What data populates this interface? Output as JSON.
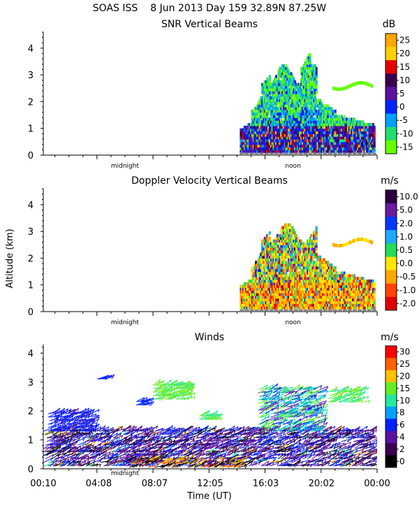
{
  "header": {
    "site": "SOAS ISS",
    "date": "8 Jun 2013 Day 159 32.89N  87.25W"
  },
  "common_axes": {
    "ylabel": "Altitude (km)",
    "xlabel": "Time (UT)",
    "y_ticks": [
      "0",
      "1",
      "2",
      "3",
      "4"
    ],
    "x_tick_labels": [
      "00:10",
      "04:08",
      "08:07",
      "12:05",
      "16:03",
      "20:02",
      "00:00"
    ],
    "inner_labels": {
      "midnight": "midnight",
      "noon": "noon"
    }
  },
  "chart_data": [
    {
      "type": "heatmap",
      "title": "SNR Vertical Beams",
      "units": "dB",
      "ylim": [
        0,
        4.6
      ],
      "x_range_hours": [
        0.17,
        24.0
      ],
      "data_start_hour": 14.2,
      "data_end_hour": 23.8,
      "colorbar_labels": [
        "25",
        "20",
        "15",
        "10",
        "5",
        "0",
        "-5",
        "-10",
        "-15"
      ],
      "colorbar_colors": [
        "#ffa800",
        "#ffd000",
        "#e60000",
        "#3a0050",
        "#5a12a0",
        "#0024ff",
        "#00a0ff",
        "#22dd70",
        "#66ff00"
      ]
    },
    {
      "type": "heatmap",
      "title": "Doppler Velocity Vertical Beams",
      "units": "m/s",
      "ylim": [
        0,
        4.6
      ],
      "x_range_hours": [
        0.17,
        24.0
      ],
      "data_start_hour": 14.2,
      "data_end_hour": 23.8,
      "colorbar_labels": [
        "10.0",
        "5.0",
        "2.0",
        "1.0",
        "0.5",
        "0.0",
        "-0.5",
        "-1.0",
        "-2.0"
      ],
      "colorbar_colors": [
        "#2a0040",
        "#6a1aa0",
        "#0038ff",
        "#1fa8ff",
        "#22dd55",
        "#ffe600",
        "#ffa800",
        "#ff4400",
        "#e00000"
      ]
    },
    {
      "type": "scatter",
      "title": "Winds",
      "units": "m/s",
      "ylim": [
        0,
        4.3
      ],
      "x_range_hours": [
        0.17,
        24.0
      ],
      "colorbar_labels": [
        "30",
        "25",
        "20",
        "15",
        "10",
        "8",
        "6",
        "4",
        "2",
        "0"
      ],
      "colorbar_colors": [
        "#ff0000",
        "#ff6000",
        "#ffc000",
        "#66ee22",
        "#22e8a0",
        "#00a0ff",
        "#0020ff",
        "#5a12a0",
        "#3a0050",
        "#000000"
      ]
    }
  ]
}
